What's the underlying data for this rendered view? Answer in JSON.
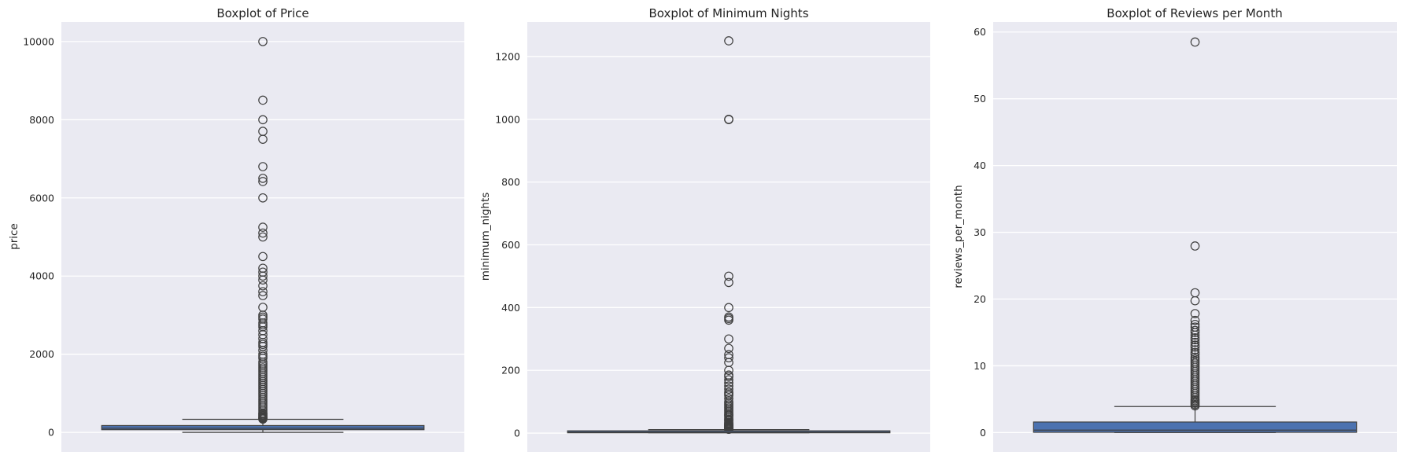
{
  "chart_data": [
    {
      "type": "box",
      "title": "Boxplot of Price",
      "xlabel": "",
      "ylabel": "price",
      "ylim": [
        -500,
        10500
      ],
      "yticks": [
        0,
        2000,
        4000,
        6000,
        8000,
        10000
      ],
      "ytick_labels": [
        "0",
        "2000",
        "4000",
        "6000",
        "8000",
        "10000"
      ],
      "box": {
        "whisker_low": 0,
        "q1": 69,
        "median": 106,
        "q3": 175,
        "whisker_high": 334
      },
      "color": "#4c72b0",
      "outliers": [
        10000,
        8500,
        8000,
        7703,
        7500,
        6800,
        6500,
        6419,
        6000,
        5250,
        5100,
        5000,
        4500,
        4200,
        4100,
        4000,
        3900,
        3750,
        3600,
        3500,
        3200,
        3000,
        2950,
        2900,
        2800,
        2750,
        2700,
        2600,
        2500,
        2400,
        2300,
        2250,
        2200,
        2100,
        2000,
        1950,
        1900,
        1800,
        1750,
        1700,
        1650,
        1600,
        1550,
        1500,
        1450,
        1400,
        1350,
        1300,
        1250,
        1200,
        1150,
        1100,
        1050,
        1000,
        950,
        900,
        850,
        800,
        750,
        700,
        650,
        600,
        550,
        500,
        475,
        450,
        425,
        400,
        380,
        360,
        350,
        340
      ]
    },
    {
      "type": "box",
      "title": "Boxplot of Minimum Nights",
      "xlabel": "",
      "ylabel": "minimum_nights",
      "ylim": [
        -60,
        1310
      ],
      "yticks": [
        0,
        200,
        400,
        600,
        800,
        1000,
        1200
      ],
      "ytick_labels": [
        "0",
        "200",
        "400",
        "600",
        "800",
        "1000",
        "1200"
      ],
      "box": {
        "whisker_low": 1,
        "q1": 1,
        "median": 3,
        "q3": 5,
        "whisker_high": 11
      },
      "color": "#4c72b0",
      "outliers": [
        1250,
        1000,
        999,
        500,
        480,
        400,
        370,
        365,
        360,
        300,
        270,
        250,
        240,
        225,
        200,
        185,
        180,
        170,
        160,
        150,
        140,
        130,
        125,
        120,
        110,
        100,
        95,
        90,
        85,
        80,
        75,
        70,
        65,
        60,
        58,
        55,
        50,
        45,
        42,
        40,
        35,
        32,
        30,
        28,
        27,
        25,
        24,
        22,
        21,
        20,
        19,
        18,
        17,
        16,
        15,
        14,
        13,
        12
      ]
    },
    {
      "type": "box",
      "title": "Boxplot of Reviews per Month",
      "xlabel": "",
      "ylabel": "reviews_per_month",
      "ylim": [
        -2.9,
        61.5
      ],
      "yticks": [
        0,
        10,
        20,
        30,
        40,
        50,
        60
      ],
      "ytick_labels": [
        "0",
        "10",
        "20",
        "30",
        "40",
        "50",
        "60"
      ],
      "box": {
        "whisker_low": 0.01,
        "q1": 0.04,
        "median": 0.37,
        "q3": 1.58,
        "whisker_high": 3.9
      },
      "color": "#4c72b0",
      "outliers": [
        58.5,
        27.95,
        20.94,
        19.75,
        17.82,
        16.8,
        16.2,
        15.8,
        15.3,
        15.0,
        14.6,
        14.2,
        13.9,
        13.5,
        13.1,
        12.8,
        12.4,
        12.0,
        11.7,
        11.3,
        11.0,
        10.7,
        10.4,
        10.1,
        9.8,
        9.5,
        9.2,
        8.9,
        8.6,
        8.3,
        8.0,
        7.7,
        7.4,
        7.1,
        6.8,
        6.5,
        6.2,
        5.9,
        5.6,
        5.3,
        5.0,
        4.8,
        4.6,
        4.4,
        4.2,
        4.0
      ]
    }
  ]
}
